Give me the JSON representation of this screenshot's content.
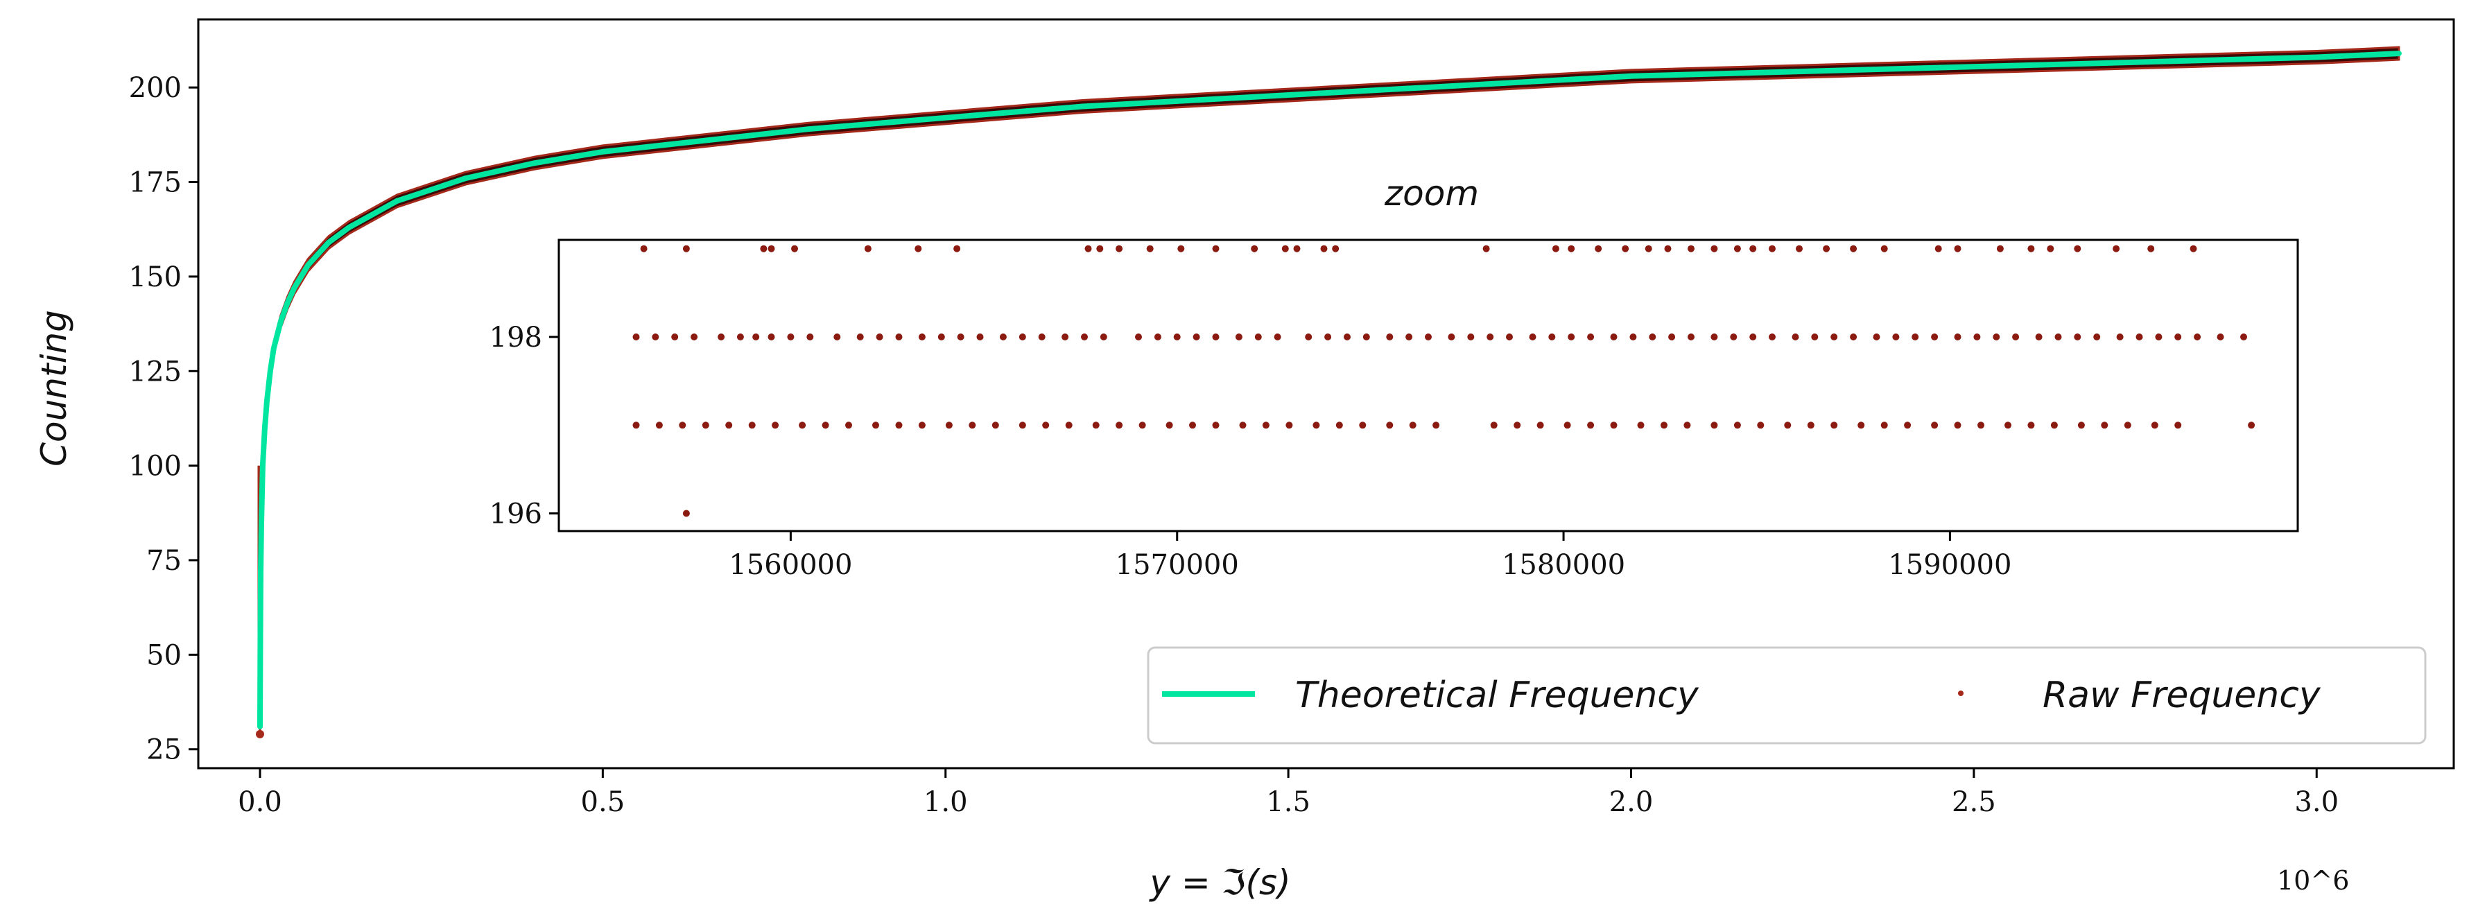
{
  "chart_data": [
    {
      "id": "main",
      "type": "line",
      "title": "",
      "xlabel": "y = ℑ(s)",
      "ylabel": "Counting",
      "x_scale_note": "10^6",
      "xlim": [
        -0.09,
        3.2
      ],
      "ylim": [
        20,
        218
      ],
      "xticks": [
        0.0,
        0.5,
        1.0,
        1.5,
        2.0,
        2.5,
        3.0
      ],
      "xtick_labels": [
        "0.0",
        "0.5",
        "1.0",
        "1.5",
        "2.0",
        "2.5",
        "3.0"
      ],
      "yticks": [
        25,
        50,
        75,
        100,
        125,
        150,
        175,
        200
      ],
      "ytick_labels": [
        "25",
        "50",
        "75",
        "100",
        "125",
        "150",
        "175",
        "200"
      ],
      "grid": false,
      "legend_position": "bottom-right",
      "series": [
        {
          "name": "Theoretical Frequency",
          "kind": "line",
          "color": "#00e5a0",
          "x": [
            0.0,
            0.0005,
            0.001,
            0.002,
            0.004,
            0.007,
            0.01,
            0.015,
            0.02,
            0.03,
            0.04,
            0.05,
            0.07,
            0.1,
            0.13,
            0.16,
            0.2,
            0.25,
            0.3,
            0.4,
            0.5,
            0.6,
            0.7,
            0.8,
            1.0,
            1.2,
            1.4,
            1.6,
            1.8,
            2.0,
            2.2,
            2.4,
            2.6,
            2.8,
            3.0,
            3.12
          ],
          "y": [
            31,
            55,
            72,
            85,
            100,
            110,
            117,
            125,
            131,
            138,
            143,
            147,
            153,
            159,
            163,
            166,
            170,
            173,
            176,
            180,
            183,
            185,
            187,
            189,
            192,
            195,
            197,
            199,
            201,
            203,
            204,
            205,
            206,
            207,
            208,
            209
          ]
        },
        {
          "name": "Raw Frequency",
          "kind": "scatter",
          "color": "#a52a1c",
          "band_color": "#3a0a06",
          "outlier_points": [
            [
              0.0,
              29
            ]
          ]
        }
      ]
    },
    {
      "id": "inset",
      "type": "scatter",
      "title": "zoom",
      "xlim": [
        1554000,
        1599000
      ],
      "ylim": [
        195.8,
        199.1
      ],
      "xticks": [
        1560000,
        1570000,
        1580000,
        1590000
      ],
      "xtick_labels": [
        "1560000",
        "1570000",
        "1580000",
        "1590000"
      ],
      "yticks": [
        196,
        198
      ],
      "ytick_labels": [
        "196",
        "198"
      ],
      "grid": false,
      "color": "#8b1a10",
      "series": [
        {
          "name": "Raw Frequency",
          "points_y199_x": [
            1556200,
            1557300,
            1559300,
            1559500,
            1560100,
            1562000,
            1563300,
            1564300,
            1567700,
            1568000,
            1568500,
            1569300,
            1570100,
            1571000,
            1572000,
            1572800,
            1573100,
            1573800,
            1574100,
            1578000,
            1579800,
            1580200,
            1580900,
            1581600,
            1582200,
            1582700,
            1583300,
            1583900,
            1584500,
            1584900,
            1585400,
            1586100,
            1586800,
            1587500,
            1588300,
            1589700,
            1590200,
            1591300,
            1592100,
            1592600,
            1593300,
            1594300,
            1595200,
            1596300
          ],
          "points_y198_x": [
            1556000,
            1556500,
            1557000,
            1557500,
            1558200,
            1558700,
            1559100,
            1559500,
            1560000,
            1560500,
            1561200,
            1561800,
            1562300,
            1562800,
            1563400,
            1563900,
            1564400,
            1564900,
            1565500,
            1566000,
            1566500,
            1567100,
            1567600,
            1568100,
            1569000,
            1569500,
            1570000,
            1570500,
            1571000,
            1571600,
            1572100,
            1572600,
            1573400,
            1573900,
            1574400,
            1574900,
            1575500,
            1576000,
            1576500,
            1577100,
            1577600,
            1578100,
            1578600,
            1579200,
            1579700,
            1580200,
            1580700,
            1581300,
            1581800,
            1582300,
            1582800,
            1583300,
            1583900,
            1584400,
            1584900,
            1585400,
            1586000,
            1586500,
            1587000,
            1587500,
            1588100,
            1588600,
            1589100,
            1589600,
            1590200,
            1590700,
            1591200,
            1591700,
            1592300,
            1592800,
            1593300,
            1593800,
            1594400,
            1594900,
            1595400,
            1595900,
            1596400,
            1597000,
            1597600
          ],
          "points_y197_x": [
            1556000,
            1556600,
            1557200,
            1557800,
            1558400,
            1559000,
            1559600,
            1560300,
            1560900,
            1561500,
            1562200,
            1562800,
            1563400,
            1564100,
            1564700,
            1565300,
            1566000,
            1566600,
            1567200,
            1567900,
            1568500,
            1569100,
            1569800,
            1570400,
            1571000,
            1571700,
            1572300,
            1572900,
            1573600,
            1574200,
            1574800,
            1575500,
            1576100,
            1576700,
            1578200,
            1578800,
            1579400,
            1580100,
            1580700,
            1581300,
            1582000,
            1582600,
            1583200,
            1583900,
            1584500,
            1585100,
            1585800,
            1586400,
            1587000,
            1587700,
            1588300,
            1588900,
            1589600,
            1590200,
            1590800,
            1591500,
            1592100,
            1592700,
            1593400,
            1594000,
            1594600,
            1595300,
            1595900,
            1597800
          ],
          "points_y196_x": [
            1557300
          ]
        }
      ]
    }
  ],
  "legend": {
    "items": [
      {
        "label": "Theoretical Frequency",
        "kind": "line",
        "color": "#00e5a0"
      },
      {
        "label": "Raw Frequency",
        "kind": "dot",
        "color": "#a52a1c"
      }
    ]
  }
}
